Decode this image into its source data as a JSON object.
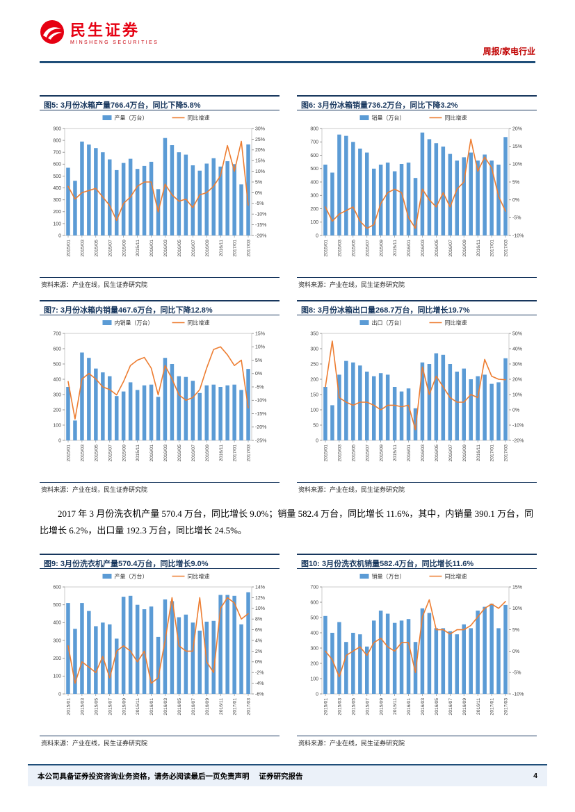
{
  "header": {
    "brand": "民生证券",
    "brand_sub": "MINSHENG SECURITIES",
    "doc_type": "周报/家电行业"
  },
  "paragraph": "2017 年 3 月份洗衣机产量 570.4 万台，同比增长 9.0%；销量 582.4 万台，同比增长 11.6%，其中，内销量 390.1 万台，同比增长 6.2%，出口量 192.3 万台，同比增长 24.5%。",
  "source_note": "资料来源：产业在线，民生证券研究院",
  "footer": {
    "disclaimer": "本公司具备证券投资咨询业务资格，请务必阅读最后一页免责声明",
    "doc_label": "证券研究报告",
    "page_number": "4"
  },
  "colors": {
    "bar": "#5B9BD5",
    "line": "#ED7D31",
    "title_blue": "#17365D",
    "brand_red": "#E60012",
    "rule_blue": "#1F4E79"
  },
  "chart_data": [
    {
      "type": "bar+line",
      "title": "图5: 3月份冰箱产量766.4万台，同比下降5.8%",
      "bar_label": "产量（万台）",
      "line_label": "同比增速",
      "categories": [
        "2015/01",
        "2015/02",
        "2015/03",
        "2015/04",
        "2015/05",
        "2015/06",
        "2015/07",
        "2015/08",
        "2015/09",
        "2015/10",
        "2015/11",
        "2015/12",
        "2016/01",
        "2016/02",
        "2016/03",
        "2016/04",
        "2016/05",
        "2016/06",
        "2016/07",
        "2016/08",
        "2016/09",
        "2016/10",
        "2016/11",
        "2016/12",
        "2017/01",
        "2017/02",
        "2017/03"
      ],
      "bars": [
        570,
        460,
        790,
        765,
        735,
        700,
        640,
        550,
        610,
        645,
        560,
        585,
        620,
        390,
        820,
        760,
        700,
        680,
        590,
        545,
        605,
        650,
        580,
        625,
        600,
        430,
        766.4
      ],
      "line": [
        3,
        -3,
        0,
        1,
        2,
        -2,
        -6,
        -13,
        -5,
        -2,
        3,
        5,
        5,
        -9,
        4,
        -1,
        -4,
        -3,
        -7,
        -1,
        0,
        3,
        8,
        22,
        10,
        24,
        -5.8
      ],
      "y_left": {
        "min": 0,
        "max": 900,
        "step": 100
      },
      "y_right": {
        "min": -20,
        "max": 30,
        "step": 5
      }
    },
    {
      "type": "bar+line",
      "title": "图6: 3月份冰箱销量736.2万台，同比下降3.2%",
      "bar_label": "销量（万台）",
      "line_label": "同比增速",
      "categories": [
        "2015/01",
        "2015/02",
        "2015/03",
        "2015/04",
        "2015/05",
        "2015/06",
        "2015/07",
        "2015/08",
        "2015/09",
        "2015/10",
        "2015/11",
        "2015/12",
        "2016/01",
        "2016/02",
        "2016/03",
        "2016/04",
        "2016/05",
        "2016/06",
        "2016/07",
        "2016/08",
        "2016/09",
        "2016/10",
        "2016/11",
        "2016/12",
        "2017/01",
        "2017/02",
        "2017/03"
      ],
      "bars": [
        530,
        470,
        755,
        745,
        700,
        650,
        620,
        500,
        530,
        545,
        480,
        535,
        545,
        430,
        770,
        720,
        690,
        665,
        610,
        560,
        585,
        620,
        560,
        605,
        560,
        530,
        736.2
      ],
      "line": [
        -2,
        -6,
        -4,
        -3,
        -2,
        -6,
        -8,
        -7,
        -1,
        2,
        3,
        2,
        -5,
        -8,
        3,
        0,
        -2,
        2,
        -2,
        3,
        5,
        17,
        8,
        12,
        9,
        1,
        -3.2
      ],
      "y_left": {
        "min": 0,
        "max": 800,
        "step": 100
      },
      "y_right": {
        "min": -10,
        "max": 20,
        "step": 5
      }
    },
    {
      "type": "bar+line",
      "title": "图7: 3月份冰箱内销量467.6万台，同比下降12.8%",
      "bar_label": "内销量（万台）",
      "line_label": "同比增速",
      "categories": [
        "2015/01",
        "2015/02",
        "2015/03",
        "2015/04",
        "2015/05",
        "2015/06",
        "2015/07",
        "2015/08",
        "2015/09",
        "2015/10",
        "2015/11",
        "2015/12",
        "2016/01",
        "2016/02",
        "2016/03",
        "2016/04",
        "2016/05",
        "2016/06",
        "2016/07",
        "2016/08",
        "2016/09",
        "2016/10",
        "2016/11",
        "2016/12",
        "2017/01",
        "2017/02",
        "2017/03"
      ],
      "bars": [
        350,
        130,
        575,
        540,
        470,
        445,
        420,
        290,
        320,
        380,
        330,
        360,
        365,
        285,
        540,
        500,
        420,
        415,
        390,
        310,
        360,
        365,
        350,
        360,
        365,
        330,
        467.6
      ],
      "line": [
        -3,
        -17,
        -2,
        0,
        -2,
        -5,
        -6,
        -8,
        -3,
        3,
        5,
        6,
        2,
        -8,
        3,
        -2,
        -8,
        -10,
        -9,
        -6,
        2,
        9,
        10,
        7,
        3,
        5,
        -12.8
      ],
      "y_left": {
        "min": 0,
        "max": 700,
        "step": 100
      },
      "y_right": {
        "min": -25,
        "max": 15,
        "step": 5
      }
    },
    {
      "type": "bar+line",
      "title": "图8: 3月份冰箱出口量268.7万台，同比增长19.7%",
      "bar_label": "出口（万台）",
      "line_label": "同比增速",
      "categories": [
        "2015/01",
        "2015/02",
        "2015/03",
        "2015/04",
        "2015/05",
        "2015/06",
        "2015/07",
        "2015/08",
        "2015/09",
        "2015/10",
        "2015/11",
        "2015/12",
        "2016/01",
        "2016/02",
        "2016/03",
        "2016/04",
        "2016/05",
        "2016/06",
        "2016/07",
        "2016/08",
        "2016/09",
        "2016/10",
        "2016/11",
        "2016/12",
        "2017/01",
        "2017/02",
        "2017/03"
      ],
      "bars": [
        175,
        115,
        215,
        260,
        255,
        245,
        225,
        210,
        220,
        215,
        175,
        160,
        170,
        105,
        255,
        250,
        285,
        280,
        250,
        225,
        235,
        200,
        210,
        215,
        185,
        190,
        268.7
      ],
      "line": [
        15,
        45,
        8,
        5,
        3,
        5,
        5,
        3,
        0,
        3,
        3,
        2,
        3,
        -13,
        28,
        10,
        22,
        15,
        8,
        5,
        5,
        10,
        8,
        33,
        22,
        20,
        19.7
      ],
      "y_left": {
        "min": 0,
        "max": 350,
        "step": 50
      },
      "y_right": {
        "min": -20,
        "max": 50,
        "step": 10
      }
    },
    {
      "type": "bar+line",
      "title": "图9: 3月份洗衣机产量570.4万台，同比增长9.0%",
      "bar_label": "产量（万台）",
      "line_label": "同比增速",
      "categories": [
        "2015/01",
        "2015/02",
        "2015/03",
        "2015/04",
        "2015/05",
        "2015/06",
        "2015/07",
        "2015/08",
        "2015/09",
        "2015/10",
        "2015/11",
        "2015/12",
        "2016/01",
        "2016/02",
        "2016/03",
        "2016/04",
        "2016/05",
        "2016/06",
        "2016/07",
        "2016/08",
        "2016/09",
        "2016/10",
        "2016/11",
        "2016/12",
        "2017/01",
        "2017/02",
        "2017/03"
      ],
      "bars": [
        510,
        365,
        510,
        465,
        380,
        400,
        390,
        310,
        545,
        550,
        500,
        475,
        490,
        320,
        530,
        520,
        430,
        445,
        400,
        355,
        405,
        410,
        555,
        555,
        550,
        390,
        570.4
      ],
      "line": [
        3,
        -4,
        0,
        -1,
        -2,
        1,
        -3,
        2,
        3,
        2,
        0,
        2,
        -4,
        -3,
        4,
        12,
        3,
        2,
        2,
        12,
        0,
        -2,
        10,
        12,
        11,
        8,
        9
      ],
      "y_left": {
        "min": 0,
        "max": 600,
        "step": 100
      },
      "y_right": {
        "min": -6,
        "max": 14,
        "step": 2
      }
    },
    {
      "type": "bar+line",
      "title": "图10: 3月份洗衣机销量582.4万台，同比增长11.6%",
      "bar_label": "销量（万台）",
      "line_label": "同比增速",
      "categories": [
        "2015/01",
        "2015/02",
        "2015/03",
        "2015/04",
        "2015/05",
        "2015/06",
        "2015/07",
        "2015/08",
        "2015/09",
        "2015/10",
        "2015/11",
        "2015/12",
        "2016/01",
        "2016/02",
        "2016/03",
        "2016/04",
        "2016/05",
        "2016/06",
        "2016/07",
        "2016/08",
        "2016/09",
        "2016/10",
        "2016/11",
        "2016/12",
        "2017/01",
        "2017/02",
        "2017/03"
      ],
      "bars": [
        510,
        400,
        470,
        340,
        400,
        390,
        310,
        480,
        545,
        525,
        465,
        480,
        490,
        340,
        560,
        530,
        430,
        430,
        410,
        390,
        455,
        430,
        545,
        570,
        590,
        430,
        582.4
      ],
      "line": [
        0,
        -2,
        -6,
        -1,
        0,
        1,
        -1,
        2,
        3,
        1,
        0,
        2,
        2,
        -5,
        8,
        12,
        5,
        5,
        4,
        5,
        5,
        6,
        8,
        10,
        11,
        10,
        11.6
      ],
      "y_left": {
        "min": 0,
        "max": 700,
        "step": 100
      },
      "y_right": {
        "min": -10,
        "max": 15,
        "step": 5
      }
    }
  ]
}
